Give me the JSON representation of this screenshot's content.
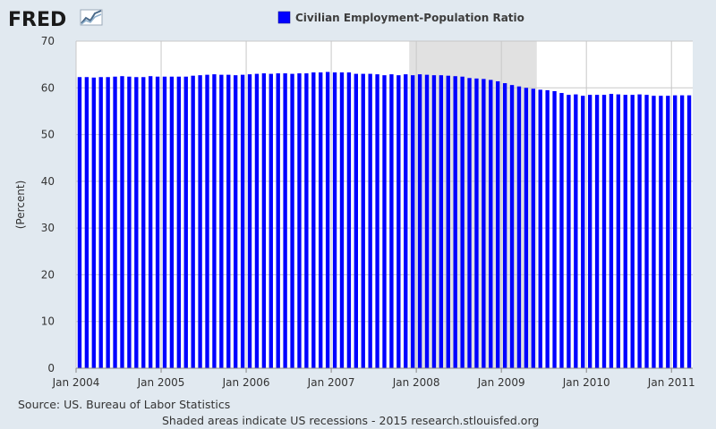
{
  "logo": {
    "text": "FRED"
  },
  "footer": {
    "source": "Source: US. Bureau of Labor Statistics",
    "note": "Shaded areas indicate US recessions - 2015 research.stlouisfed.org"
  },
  "colors": {
    "bar": "#0000ff",
    "recession": "#e1e1e1",
    "plot_bg": "#ffffff",
    "page_bg": "#e1e9f0",
    "grid": "#c8c8c8"
  },
  "chart_data": {
    "type": "bar",
    "title": "",
    "legend": [
      {
        "label": "Civilian Employment-Population Ratio",
        "color": "#0000ff"
      }
    ],
    "legend_position": "top-center",
    "xlabel": "",
    "ylabel": "(Percent)",
    "ylim": [
      0,
      70
    ],
    "yticks": [
      0,
      10,
      20,
      30,
      40,
      50,
      60,
      70
    ],
    "grid": true,
    "x_start": "2004-01",
    "x_end": "2011-04",
    "xticks": [
      {
        "date": "2004-01",
        "label": "Jan 2004"
      },
      {
        "date": "2005-01",
        "label": "Jan 2005"
      },
      {
        "date": "2006-01",
        "label": "Jan 2006"
      },
      {
        "date": "2007-01",
        "label": "Jan 2007"
      },
      {
        "date": "2008-01",
        "label": "Jan 2008"
      },
      {
        "date": "2009-01",
        "label": "Jan 2009"
      },
      {
        "date": "2010-01",
        "label": "Jan 2010"
      },
      {
        "date": "2011-01",
        "label": "Jan 2011"
      }
    ],
    "recessions": [
      {
        "start": "2007-12",
        "end": "2009-06"
      }
    ],
    "series": [
      {
        "name": "Civilian Employment-Population Ratio",
        "dates": [
          "2004-01",
          "2004-02",
          "2004-03",
          "2004-04",
          "2004-05",
          "2004-06",
          "2004-07",
          "2004-08",
          "2004-09",
          "2004-10",
          "2004-11",
          "2004-12",
          "2005-01",
          "2005-02",
          "2005-03",
          "2005-04",
          "2005-05",
          "2005-06",
          "2005-07",
          "2005-08",
          "2005-09",
          "2005-10",
          "2005-11",
          "2005-12",
          "2006-01",
          "2006-02",
          "2006-03",
          "2006-04",
          "2006-05",
          "2006-06",
          "2006-07",
          "2006-08",
          "2006-09",
          "2006-10",
          "2006-11",
          "2006-12",
          "2007-01",
          "2007-02",
          "2007-03",
          "2007-04",
          "2007-05",
          "2007-06",
          "2007-07",
          "2007-08",
          "2007-09",
          "2007-10",
          "2007-11",
          "2007-12",
          "2008-01",
          "2008-02",
          "2008-03",
          "2008-04",
          "2008-05",
          "2008-06",
          "2008-07",
          "2008-08",
          "2008-09",
          "2008-10",
          "2008-11",
          "2008-12",
          "2009-01",
          "2009-02",
          "2009-03",
          "2009-04",
          "2009-05",
          "2009-06",
          "2009-07",
          "2009-08",
          "2009-09",
          "2009-10",
          "2009-11",
          "2009-12",
          "2010-01",
          "2010-02",
          "2010-03",
          "2010-04",
          "2010-05",
          "2010-06",
          "2010-07",
          "2010-08",
          "2010-09",
          "2010-10",
          "2010-11",
          "2010-12",
          "2011-01",
          "2011-02",
          "2011-03"
        ],
        "values": [
          62.3,
          62.3,
          62.2,
          62.3,
          62.3,
          62.4,
          62.5,
          62.4,
          62.3,
          62.3,
          62.5,
          62.4,
          62.4,
          62.4,
          62.4,
          62.4,
          62.6,
          62.7,
          62.8,
          62.9,
          62.8,
          62.8,
          62.7,
          62.8,
          62.9,
          63.0,
          63.1,
          63.0,
          63.1,
          63.1,
          63.0,
          63.1,
          63.1,
          63.3,
          63.3,
          63.4,
          63.3,
          63.3,
          63.3,
          63.0,
          63.0,
          63.0,
          62.9,
          62.7,
          62.9,
          62.7,
          62.9,
          62.7,
          62.9,
          62.8,
          62.7,
          62.7,
          62.6,
          62.5,
          62.4,
          62.1,
          62.0,
          61.9,
          61.7,
          61.4,
          61.0,
          60.6,
          60.3,
          60.0,
          59.8,
          59.6,
          59.5,
          59.3,
          58.9,
          58.5,
          58.6,
          58.3,
          58.5,
          58.5,
          58.5,
          58.7,
          58.6,
          58.5,
          58.5,
          58.6,
          58.5,
          58.3,
          58.3,
          58.3,
          58.4,
          58.4,
          58.4
        ]
      }
    ]
  }
}
